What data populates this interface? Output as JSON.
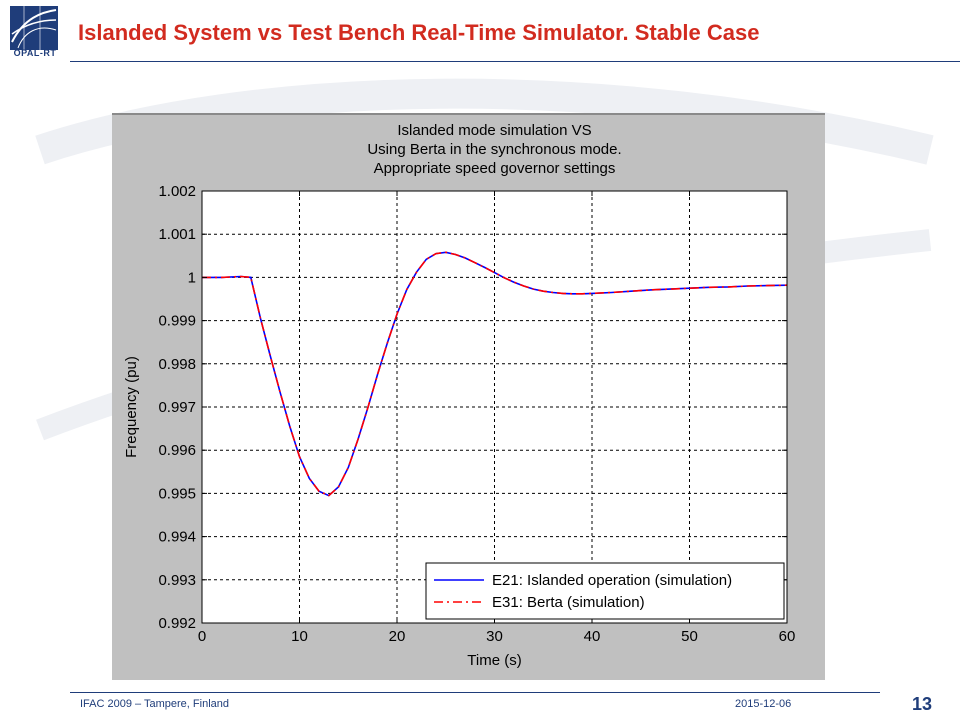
{
  "slide": {
    "title": "Islanded System vs Test Bench Real-Time Simulator. Stable Case",
    "logo_text": "OPAL-RT",
    "footer_left": "IFAC 2009 – Tampere, Finland",
    "footer_date": "2015-12-06",
    "page_number": "13"
  },
  "chart_data": {
    "type": "line",
    "title_lines": [
      "Islanded mode simulation VS",
      "Using Berta in the synchronous mode.",
      "Appropriate speed governor settings"
    ],
    "xlabel": "Time (s)",
    "ylabel": "Frequency (pu)",
    "xlim": [
      0,
      60
    ],
    "ylim": [
      0.992,
      1.002
    ],
    "xticks": [
      0,
      10,
      20,
      30,
      40,
      50,
      60
    ],
    "xtick_labels": [
      "0",
      "10",
      "20",
      "30",
      "40",
      "50",
      "60"
    ],
    "yticks": [
      0.992,
      0.993,
      0.994,
      0.995,
      0.996,
      0.997,
      0.998,
      0.999,
      1.0,
      1.001,
      1.002
    ],
    "ytick_labels": [
      "0.992",
      "0.993",
      "0.994",
      "0.995",
      "0.996",
      "0.997",
      "0.998",
      "0.999",
      "1",
      "1.001",
      "1.002"
    ],
    "grid": true,
    "legend_position": "bottom-right",
    "series": [
      {
        "name": "E21: Islanded operation (simulation)",
        "color": "#0000ff",
        "style": "solid",
        "x": [
          0,
          2,
          4,
          5,
          6,
          7,
          8,
          9,
          10,
          11,
          12,
          13,
          14,
          15,
          16,
          17,
          18,
          19,
          20,
          21,
          22,
          23,
          24,
          25,
          26,
          27,
          28,
          29,
          30,
          31,
          32,
          33,
          34,
          35,
          36,
          37,
          38,
          39,
          40,
          42,
          44,
          46,
          48,
          50,
          52,
          54,
          56,
          58,
          60
        ],
        "values": [
          1.0,
          1.0,
          1.00002,
          1.0,
          0.99905,
          0.99818,
          0.99735,
          0.99655,
          0.99585,
          0.99535,
          0.99505,
          0.99495,
          0.99515,
          0.9956,
          0.99625,
          0.99698,
          0.99775,
          0.99848,
          0.99915,
          0.99972,
          1.00012,
          1.00042,
          1.00055,
          1.00058,
          1.00053,
          1.00045,
          1.00034,
          1.00023,
          1.00011,
          0.99999,
          0.99989,
          0.9998,
          0.99973,
          0.99968,
          0.99965,
          0.99963,
          0.99962,
          0.99962,
          0.99963,
          0.99965,
          0.99968,
          0.99971,
          0.99973,
          0.99975,
          0.99977,
          0.99978,
          0.9998,
          0.99981,
          0.99982
        ]
      },
      {
        "name": "E31: Berta (simulation)",
        "color": "#ff0000",
        "style": "dashdot",
        "x": [
          0,
          2,
          4,
          5,
          6,
          7,
          8,
          9,
          10,
          11,
          12,
          13,
          14,
          15,
          16,
          17,
          18,
          19,
          20,
          21,
          22,
          23,
          24,
          25,
          26,
          27,
          28,
          29,
          30,
          31,
          32,
          33,
          34,
          35,
          36,
          37,
          38,
          39,
          40,
          42,
          44,
          46,
          48,
          50,
          52,
          54,
          56,
          58,
          60
        ],
        "values": [
          1.0,
          1.0,
          1.00002,
          1.0,
          0.99905,
          0.99818,
          0.99735,
          0.99655,
          0.99585,
          0.99535,
          0.99505,
          0.99495,
          0.99515,
          0.9956,
          0.99625,
          0.99698,
          0.99775,
          0.99848,
          0.99915,
          0.99972,
          1.00012,
          1.00042,
          1.00055,
          1.00058,
          1.00053,
          1.00045,
          1.00034,
          1.00023,
          1.00011,
          0.99999,
          0.99989,
          0.9998,
          0.99973,
          0.99968,
          0.99965,
          0.99963,
          0.99962,
          0.99962,
          0.99963,
          0.99965,
          0.99968,
          0.99971,
          0.99973,
          0.99975,
          0.99977,
          0.99978,
          0.9998,
          0.99981,
          0.99982
        ]
      }
    ]
  }
}
